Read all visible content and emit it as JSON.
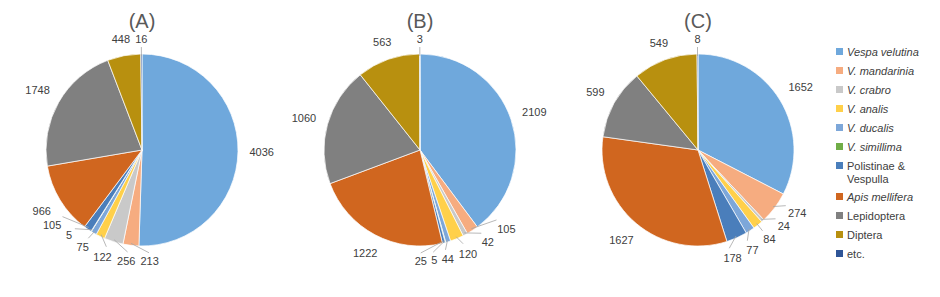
{
  "chart_data": {
    "type": "pie",
    "categories": [
      "Vespa velutina",
      "V. mandarinia",
      "V. crabro",
      "V. analis",
      "V. ducalis",
      "V. simillima",
      "Polistinae & Vespulla",
      "Apis mellifera",
      "Lepidoptera",
      "Diptera",
      "etc."
    ],
    "colors": [
      "#6fa8dc",
      "#f6ac80",
      "#c9c9c9",
      "#ffd04a",
      "#7da7d9",
      "#70ad47",
      "#4a7ebb",
      "#d0661f",
      "#808080",
      "#b8900f",
      "#2f5597"
    ],
    "series": [
      {
        "name": "(A)",
        "values": [
          4036,
          213,
          256,
          122,
          75,
          5,
          105,
          966,
          1748,
          448,
          16
        ]
      },
      {
        "name": "(B)",
        "values": [
          2109,
          105,
          42,
          120,
          44,
          5,
          25,
          1222,
          1060,
          563,
          3
        ]
      },
      {
        "name": "(C)",
        "values": [
          1652,
          274,
          24,
          84,
          77,
          null,
          178,
          1627,
          599,
          549,
          8
        ]
      }
    ],
    "legend": "right",
    "data_labels": true
  }
}
